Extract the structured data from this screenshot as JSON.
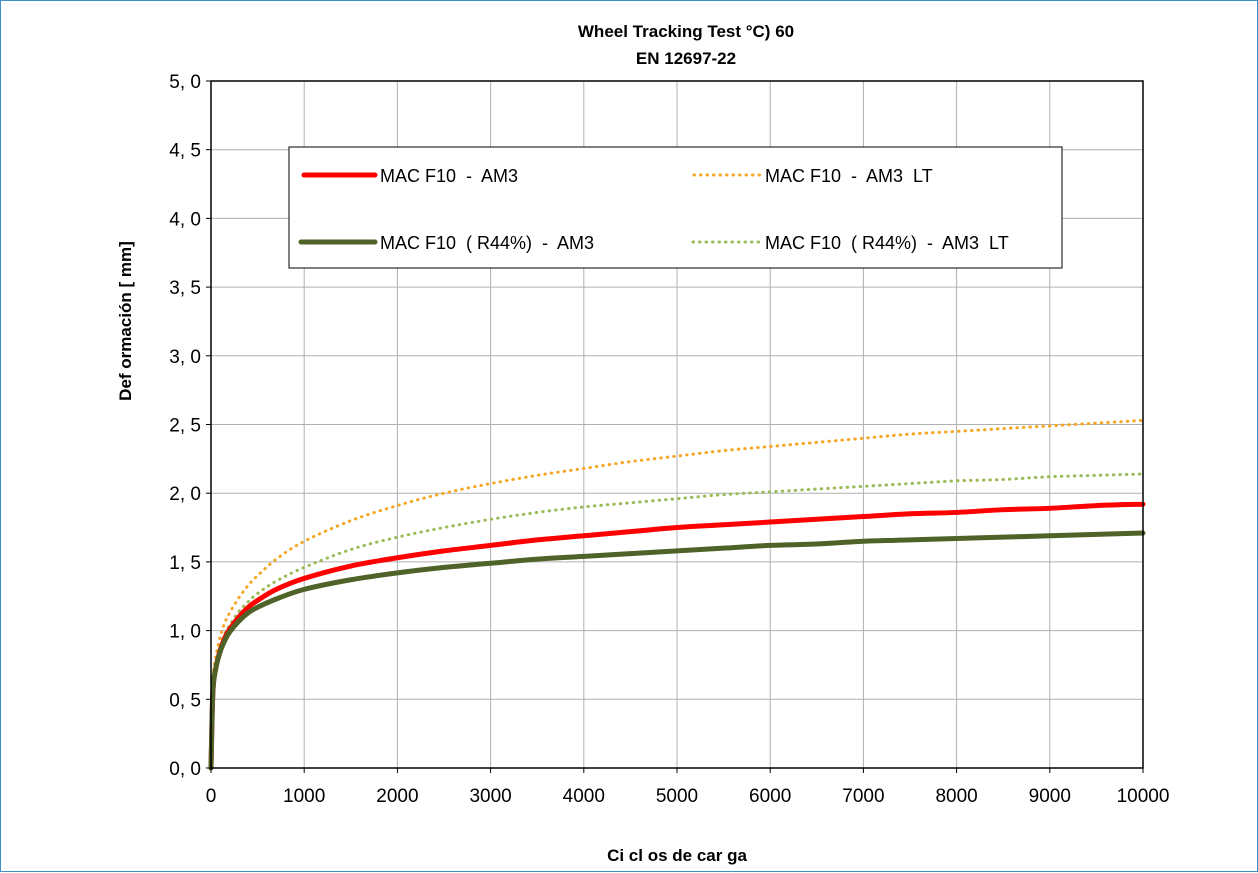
{
  "chart_data": {
    "type": "line",
    "title": "Wheel  Tracking Test °C) 60",
    "subtitle": "EN 12697-22",
    "xlabel": "Ci cl os  de  car ga",
    "ylabel": "Def ormación [ mm]",
    "xlim": [
      0,
      10000
    ],
    "ylim": [
      0,
      5
    ],
    "x_ticks": [
      "0",
      "1000",
      "2000",
      "3000",
      "4000",
      "5000",
      "6000",
      "7000",
      "8000",
      "9000",
      "10000"
    ],
    "y_ticks": [
      "0, 0",
      "0, 5",
      "1, 0",
      "1, 5",
      "2, 0",
      "2, 5",
      "3, 0",
      "3, 5",
      "4, 0",
      "4, 5",
      "5, 0"
    ],
    "grid": true,
    "legend_position": "top",
    "x": [
      0,
      20,
      50,
      100,
      150,
      200,
      300,
      400,
      500,
      700,
      1000,
      1500,
      2000,
      2500,
      3000,
      3500,
      4000,
      4500,
      5000,
      5500,
      6000,
      6500,
      7000,
      7500,
      8000,
      8500,
      9000,
      9500,
      10000
    ],
    "series": [
      {
        "name": "MAC F10  -  AM3",
        "color": "#ff0000",
        "style": "solid",
        "values": [
          0.0,
          0.55,
          0.72,
          0.86,
          0.95,
          1.01,
          1.1,
          1.17,
          1.22,
          1.3,
          1.38,
          1.47,
          1.53,
          1.58,
          1.62,
          1.66,
          1.69,
          1.72,
          1.75,
          1.77,
          1.79,
          1.81,
          1.83,
          1.85,
          1.86,
          1.88,
          1.89,
          1.91,
          1.92
        ]
      },
      {
        "name": "MAC F10  -  AM3  LT",
        "color": "#f5a623",
        "style": "dotted",
        "values": [
          0.0,
          0.62,
          0.8,
          0.96,
          1.06,
          1.13,
          1.24,
          1.33,
          1.4,
          1.52,
          1.65,
          1.8,
          1.91,
          2.0,
          2.07,
          2.13,
          2.18,
          2.23,
          2.27,
          2.31,
          2.34,
          2.37,
          2.4,
          2.43,
          2.45,
          2.47,
          2.49,
          2.51,
          2.53
        ]
      },
      {
        "name": "MAC F10  ( R44%)  -  AM3",
        "color": "#4f6228",
        "style": "solid",
        "values": [
          0.0,
          0.55,
          0.72,
          0.85,
          0.93,
          0.99,
          1.07,
          1.13,
          1.17,
          1.23,
          1.3,
          1.37,
          1.42,
          1.46,
          1.49,
          1.52,
          1.54,
          1.56,
          1.58,
          1.6,
          1.62,
          1.63,
          1.65,
          1.66,
          1.67,
          1.68,
          1.69,
          1.7,
          1.71
        ]
      },
      {
        "name": "MAC F10  ( R44%)  -  AM3  LT",
        "color": "#9bbb59",
        "style": "dotted",
        "values": [
          0.0,
          0.58,
          0.75,
          0.89,
          0.98,
          1.04,
          1.14,
          1.21,
          1.27,
          1.36,
          1.46,
          1.59,
          1.68,
          1.75,
          1.81,
          1.86,
          1.9,
          1.93,
          1.96,
          1.99,
          2.01,
          2.03,
          2.05,
          2.07,
          2.09,
          2.1,
          2.12,
          2.13,
          2.14
        ]
      }
    ]
  }
}
